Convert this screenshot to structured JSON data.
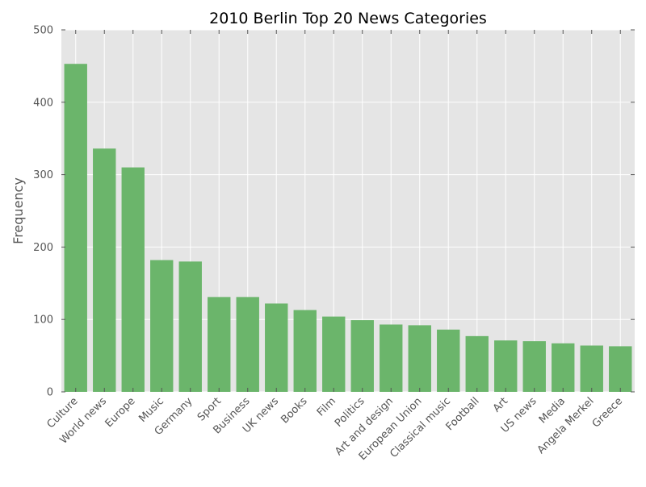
{
  "chart_data": {
    "type": "bar",
    "title": "2010 Berlin Top 20 News Categories",
    "xlabel": "",
    "ylabel": "Frequency",
    "ylim": [
      0,
      500
    ],
    "yticks": [
      0,
      100,
      200,
      300,
      400,
      500
    ],
    "grid": true,
    "bar_color": "#6bb56b",
    "background_color": "#e5e5e5",
    "categories": [
      "Culture",
      "World news",
      "Europe",
      "Music",
      "Germany",
      "Sport",
      "Business",
      "UK news",
      "Books",
      "Film",
      "Politics",
      "Art and design",
      "European Union",
      "Classical music",
      "Football",
      "Art",
      "US news",
      "Media",
      "Angela Merkel",
      "Greece"
    ],
    "values": [
      453,
      336,
      310,
      182,
      180,
      131,
      131,
      122,
      113,
      104,
      99,
      93,
      92,
      86,
      77,
      71,
      70,
      67,
      64,
      63
    ]
  }
}
